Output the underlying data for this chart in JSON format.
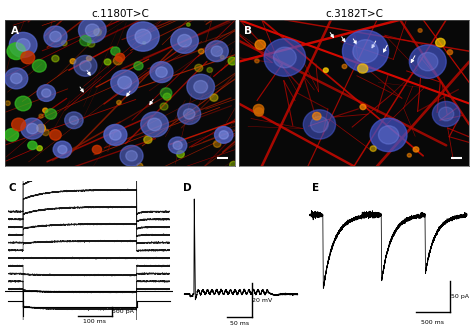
{
  "title_left": "c.1180T>C",
  "title_right": "c.3182T>C",
  "panel_labels": [
    "A",
    "B",
    "C",
    "D",
    "E"
  ],
  "scale_C": {
    "y_label": "500 pA",
    "x_label": "100 ms"
  },
  "scale_D": {
    "y_label": "20 mV",
    "x_label": "50 ms"
  },
  "scale_E": {
    "y_label": "50 pA",
    "x_label": "500 ms"
  },
  "num_traces_C": 11,
  "filament_color_A": "#aa2200",
  "filament_color_B": "#cc2200",
  "nucleus_color": "#5566bb",
  "trace_color": "#111111",
  "bg_image": "#080808"
}
